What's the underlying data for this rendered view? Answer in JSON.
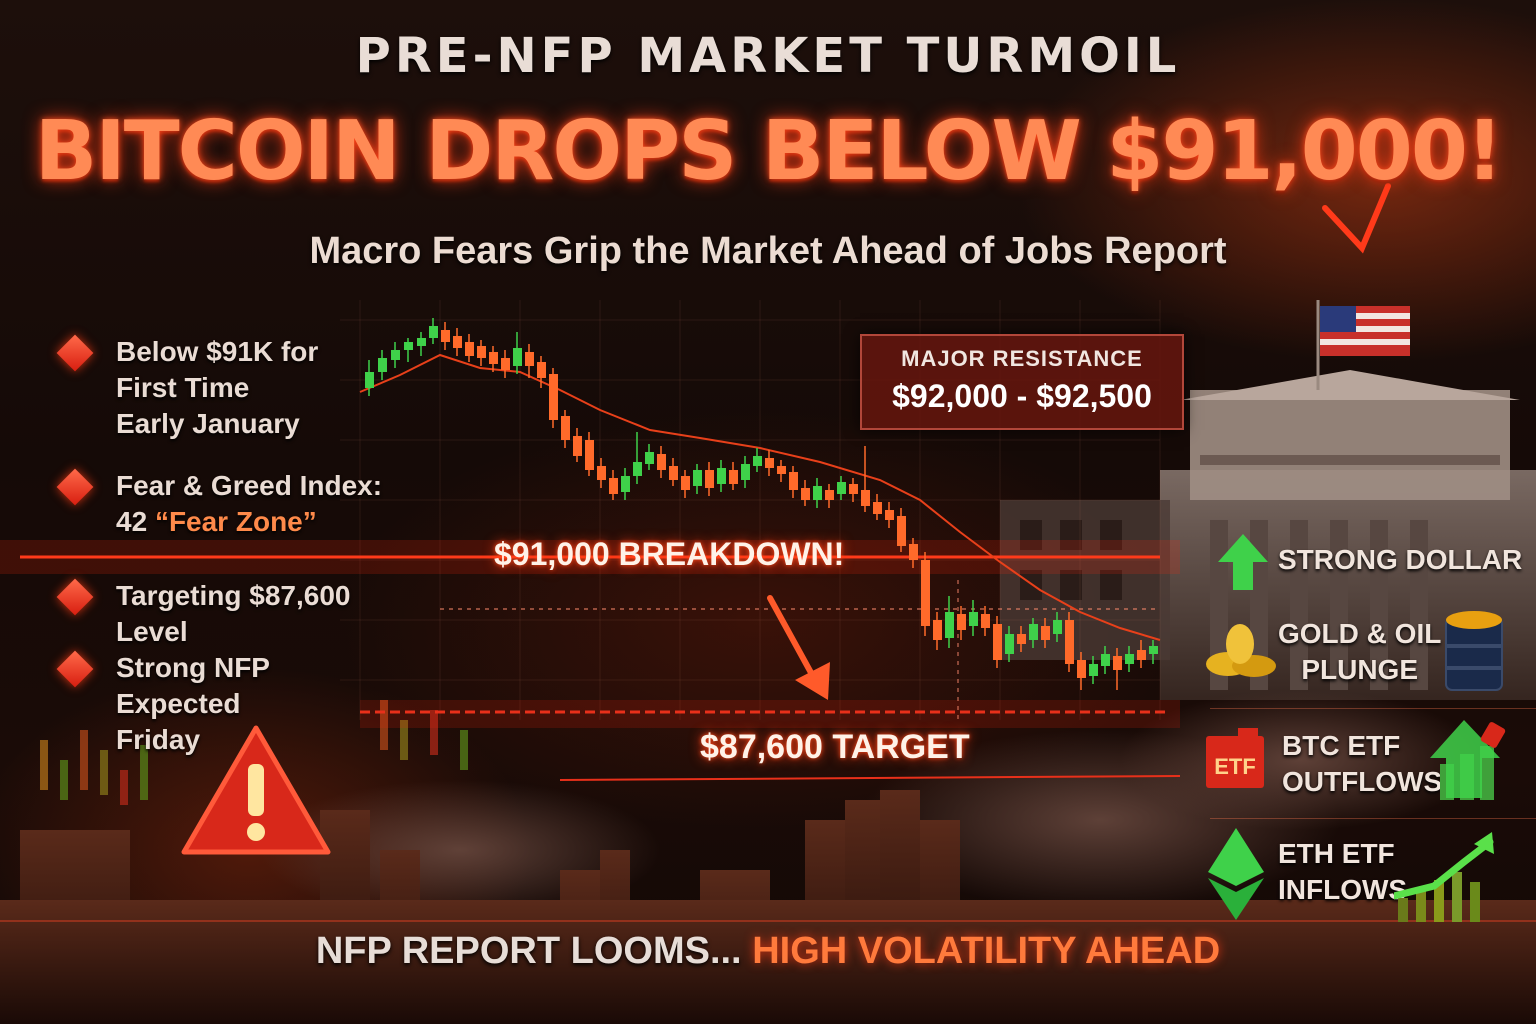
{
  "header": {
    "eyebrow": "PRE-NFP MARKET TURMOIL",
    "headline": "BITCOIN DROPS BELOW $91,000!",
    "subhead": "Macro Fears Grip the Market Ahead of Jobs Report"
  },
  "bullets": [
    {
      "text": "Below $91K for\nFirst Time\nEarly January",
      "highlight": ""
    },
    {
      "text": "Fear & Greed Index:\n42 ",
      "highlight": "“Fear Zone”"
    },
    {
      "text": "Targeting $87,600 Level",
      "highlight": ""
    },
    {
      "text": "Strong NFP Expected\nFriday",
      "highlight": ""
    }
  ],
  "resistance": {
    "title": "MAJOR RESISTANCE",
    "range": "$92,000 - $92,500"
  },
  "chart": {
    "breakdown_label": "$91,000 BREAKDOWN!",
    "target_label": "$87,600 TARGET"
  },
  "factors": [
    {
      "label": "STRONG DOLLAR",
      "icon": "up-arrow-icon"
    },
    {
      "label": "GOLD & OIL\nPLUNGE",
      "icon": "gold-coins-icon"
    },
    {
      "label": "BTC ETF\nOUTFLOWS",
      "icon": "etf-badge-icon",
      "badge": "ETF"
    },
    {
      "label": "ETH ETF\nINFLOWS",
      "icon": "ethereum-icon"
    }
  ],
  "footer": {
    "part1": "NFP REPORT LOOMS... ",
    "part2": "HIGH VOLATILITY AHEAD"
  },
  "colors": {
    "accent_red": "#ff3a1a",
    "headline_orange": "#ff8a55",
    "candle_up": "#3fd14a",
    "candle_down": "#ff6a2a"
  }
}
